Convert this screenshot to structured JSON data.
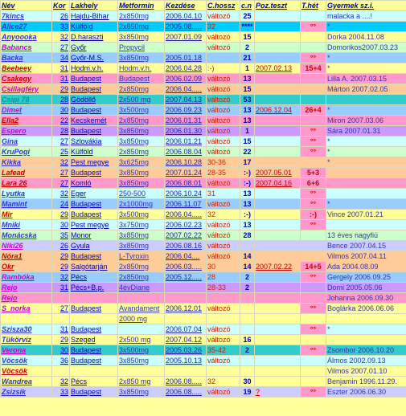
{
  "headers": {
    "nev": "Név",
    "kor": "Kor",
    "lakhely": "Lakhely",
    "metformin": "Metformin",
    "kezdese": "Kezdése",
    "chossz": "C.hossz",
    "cn": "c.n",
    "pozteszt": "Poz.teszt",
    "thet": "T.hét",
    "gyermek": "Gyermek sz.i."
  },
  "rows": [
    {
      "nev": "7kincs",
      "kor": "26",
      "lakhely": "Hajdu-Bihar",
      "metformin": "2x850mg",
      "kezdese": "2006.04.10",
      "chossz": "változó",
      "cn": "25",
      "poz": "",
      "thet": "",
      "gyermek": "malacka a ....!"
    },
    {
      "nev": "Alice27",
      "kor": "33",
      "lakhely": "Külföld",
      "metformin": "2x850mg",
      "kezdese": "2005.08.....",
      "chossz": "32",
      "cn": "****",
      "poz": "",
      "thet": "°°",
      "gyermek": "*"
    },
    {
      "nev": "Anyoooka",
      "kor": "32",
      "lakhely": "D.haraszti",
      "metformin": "3x850mg",
      "kezdese": "2007.01.09",
      "chossz": "változó",
      "cn": "15",
      "poz": "",
      "thet": "",
      "gyermek": "Dorka     2004.11.08"
    },
    {
      "nev": "Babancs",
      "kor": "27",
      "lakhely": "Győr",
      "metformin": "Propycil",
      "kezdese": "",
      "chossz": "változó",
      "cn": "2",
      "poz": "",
      "thet": "",
      "gyermek": "Domonkos2007.03.23"
    },
    {
      "nev": "Backa",
      "kor": "34",
      "lakhely": "Győr-M.S.",
      "metformin": "3x850mg",
      "kezdese": "2005.01.18",
      "chossz": "",
      "cn": "21",
      "poz": "",
      "thet": "°°",
      "gyermek": "*"
    },
    {
      "nev": "Beebeey",
      "kor": "31",
      "lakhely": "Hodm.v.h.",
      "metformin": "Hodm.v.h.",
      "kezdese": "2006.04.28",
      "chossz": ":-)",
      "cn": "1",
      "poz": "2007.02.13",
      "thet": "15+4",
      "gyermek": "*"
    },
    {
      "nev": "Csakegy",
      "kor": "31",
      "lakhely": "Budapest",
      "metformin": "Budapest",
      "kezdese": "2006.02.09",
      "chossz": "változó",
      "cn": "13",
      "poz": "",
      "thet": "",
      "gyermek": "Lilla A.    2007.03.15"
    },
    {
      "nev": "Csillagféry",
      "kor": "29",
      "lakhely": "Budapest",
      "metformin": "2x850mg",
      "kezdese": "2006.04.....",
      "chossz": "változó",
      "cn": "15",
      "poz": "",
      "thet": "",
      "gyermek": "Márton    2007.02.05"
    },
    {
      "nev": "Csipi 78",
      "kor": "28",
      "lakhely": "Gödöllő",
      "metformin": "2x500 mg",
      "kezdese": "2007.04.13",
      "chossz": "változó",
      "cn": "53",
      "poz": "",
      "thet": "",
      "gyermek": ""
    },
    {
      "nev": "Dimet",
      "kor": "30",
      "lakhely": "Budapest",
      "metformin": "3x500mg",
      "kezdese": "2006.09.23",
      "chossz": "változó",
      "cn": "13",
      "poz": "2006.12.04",
      "thet": "26+4",
      "gyermek": "*"
    },
    {
      "nev": "Ella2",
      "kor": "22",
      "lakhely": "Kecskemét",
      "metformin": "2x850mg",
      "kezdese": "2006.01.31",
      "chossz": "változó",
      "cn": "13",
      "poz": "",
      "thet": "",
      "gyermek": "Miron     2007.03.06"
    },
    {
      "nev": "Espero",
      "kor": "28",
      "lakhely": "Budapest",
      "metformin": "3x850mg",
      "kezdese": "2006.01.30",
      "chossz": "változó",
      "cn": "1",
      "poz": "",
      "thet": "°°",
      "gyermek": "Sára      2007.01.31"
    },
    {
      "nev": "Gina",
      "kor": "27",
      "lakhely": "Szlovákia",
      "metformin": "3x850mg",
      "kezdese": "2006.01.21",
      "chossz": "változó",
      "cn": "15",
      "poz": "",
      "thet": "°°",
      "gyermek": "*"
    },
    {
      "nev": "KruPogi",
      "kor": "25",
      "lakhely": "Külföld",
      "metformin": "2x850mg",
      "kezdese": "2006.08.04",
      "chossz": "változó",
      "cn": "22",
      "poz": "",
      "thet": "°°",
      "gyermek": "*"
    },
    {
      "nev": "Kikka",
      "kor": "32",
      "lakhely": "Pest megye",
      "metformin": "3x625mg",
      "kezdese": "2006.10.28",
      "chossz": "30-36",
      "cn": "17",
      "poz": "",
      "thet": "",
      "gyermek": "*"
    },
    {
      "nev": "Lafead",
      "kor": "27",
      "lakhely": "Budapest",
      "metformin": "3x850mg",
      "kezdese": "2007.01.24",
      "chossz": "28-35",
      "cn": ":-)",
      "poz": "2007.05.01",
      "thet": "5+3",
      "gyermek": ""
    },
    {
      "nev": "Lara 26",
      "kor": "27",
      "lakhely": "Komló",
      "metformin": "3x850mg",
      "kezdese": "2006.08.01",
      "chossz": "változó",
      "cn": ":-)",
      "poz": "2007.04.16",
      "thet": "6+6",
      "gyermek": ""
    },
    {
      "nev": "Lyutka",
      "kor": "32",
      "lakhely": "Eger",
      "metformin": "250-500",
      "kezdese": "2006.10.24",
      "chossz": "31",
      "cn": "13",
      "poz": "",
      "thet": "°°",
      "gyermek": ""
    },
    {
      "nev": "Mamint",
      "kor": "24",
      "lakhely": "Budapest",
      "metformin": "2x1000mg",
      "kezdese": "2006.11.07",
      "chossz": "változó",
      "cn": "13",
      "poz": "",
      "thet": "°°",
      "gyermek": "*"
    },
    {
      "nev": "Mir",
      "kor": "29",
      "lakhely": "Budapest",
      "metformin": "3x500mg",
      "kezdese": "2006.04.....",
      "chossz": "32",
      "cn": ":-)",
      "poz": "",
      "thet": ":-)",
      "gyermek": "Vince      2007.01.21"
    },
    {
      "nev": "Mniki",
      "kor": "30",
      "lakhely": "Pest megye",
      "metformin": "3x750mg",
      "kezdese": "2006.02.23",
      "chossz": "változó",
      "cn": "13",
      "poz": "",
      "thet": "°°",
      "gyermek": ""
    },
    {
      "nev": "Monácska",
      "kor": "35",
      "lakhely": "Monor",
      "metformin": "3x850mg",
      "kezdese": "2007.02.22",
      "chossz": "változó",
      "cn": "28",
      "poz": "",
      "thet": "",
      "gyermek": "13 éves nagyfiú"
    },
    {
      "nev": "Niki26",
      "kor": "26",
      "lakhely": "Gyula",
      "metformin": "3x850mg",
      "kezdese": "2006.08.16",
      "chossz": "változó",
      "cn": "",
      "poz": "",
      "thet": "",
      "gyermek": "Bence 2007.04.15"
    },
    {
      "nev": "Nóra1",
      "kor": "29",
      "lakhely": "Budapest",
      "metformin": "L-Tyroxin",
      "kezdese": "2006.04....",
      "chossz": "változó",
      "cn": "14",
      "poz": "",
      "thet": "",
      "gyermek": "Vilmos    2007.04.11"
    },
    {
      "nev": "Okr",
      "kor": "29",
      "lakhely": "Salgótarján",
      "metformin": "2x850mg",
      "kezdese": "2006.03.....",
      "chossz": "30",
      "cn": "14",
      "poz": "2007.02.22",
      "thet": "14+5",
      "gyermek": "Ada          2004.08.09"
    },
    {
      "nev": "Rambóka",
      "kor": "32",
      "lakhely": "Pécs",
      "metformin": "2x850mg",
      "kezdese": "2005.12.....",
      "chossz": "28",
      "cn": "2",
      "poz": "",
      "thet": "°°",
      "gyermek": "Gergely   2006.09.25"
    },
    {
      "nev": "Rejo",
      "kor": "31",
      "lakhely": "Pécs+B.p.",
      "metformin": "4évDiane",
      "kezdese": "",
      "chossz": "28-33",
      "cn": "2",
      "poz": "",
      "thet": "",
      "gyermek": "Domi       2005.05.06"
    },
    {
      "nev": "Rejo",
      "kor": "",
      "lakhely": "",
      "metformin": "",
      "kezdese": "",
      "chossz": "",
      "cn": "",
      "poz": "",
      "thet": "",
      "gyermek": "Johanna  2006.09.30"
    },
    {
      "nev": "S_norka",
      "kor": "27",
      "lakhely": "Budapest",
      "metformin": "Avandament",
      "kezdese": "2006.12.01",
      "chossz": "változó",
      "cn": "",
      "poz": "",
      "thet": "°°",
      "gyermek": "Boglárka 2006.06.06"
    },
    {
      "nev": "",
      "kor": "",
      "lakhely": "",
      "metformin": "2000 mg",
      "kezdese": "",
      "chossz": "",
      "cn": "",
      "poz": "",
      "thet": "",
      "gyermek": ""
    },
    {
      "nev": "Szisza30",
      "kor": "31",
      "lakhely": "Budapest",
      "metformin": "",
      "kezdese": "2006.07.04",
      "chossz": "változó",
      "cn": "",
      "poz": "",
      "thet": "°°",
      "gyermek": "*"
    },
    {
      "nev": "Tükörvíz",
      "kor": "29",
      "lakhely": "Szeged",
      "metformin": "2x500 mg",
      "kezdese": "2007.04.12",
      "chossz": "változó",
      "cn": "16",
      "poz": "",
      "thet": "",
      "gyermek": ""
    },
    {
      "nev": "Verona",
      "kor": "30",
      "lakhely": "Budapest",
      "metformin": "3x500mg",
      "kezdese": "2005.03.26",
      "chossz": "35-42",
      "cn": "2",
      "poz": "",
      "thet": "°°",
      "gyermek": "Zsombor  2006.10.20"
    },
    {
      "nev": "Vöcsök",
      "kor": "36",
      "lakhely": "Budapest",
      "metformin": "3x850mg",
      "kezdese": "2005.10.13",
      "chossz": "változó",
      "cn": "",
      "poz": "",
      "thet": "",
      "gyermek": "Álmos     2002.09.13"
    },
    {
      "nev": "Vöcsök",
      "kor": "",
      "lakhely": "",
      "metformin": "",
      "kezdese": "",
      "chossz": "",
      "cn": "",
      "poz": "",
      "thet": "",
      "gyermek": "Vilmos    2007.01.10"
    },
    {
      "nev": "Wandrea",
      "kor": "32",
      "lakhely": "Pécs",
      "metformin": "2x850 mg",
      "kezdese": "2006.08.....",
      "chossz": "32",
      "cn": "30",
      "poz": "",
      "thet": "",
      "gyermek": "Benjamin 1996.11.29."
    },
    {
      "nev": "Zsizsik",
      "kor": "33",
      "lakhely": "Budapest",
      "metformin": "3x850mg",
      "kezdese": "2006.08.....",
      "chossz": "változó",
      "cn": "19",
      "poz": "?",
      "thet": "°°",
      "gyermek": "Eszter      2006.06.30"
    }
  ],
  "row_colors": [
    "#ccffff",
    "#00ccff",
    "#ffff99",
    "#ccffcc",
    "#99ccff",
    "#ffff99",
    "#ff99cc",
    "#ffcc99",
    "#33cccc",
    "#99ccff",
    "#ff99cc",
    "#cc99ff",
    "#ccffff",
    "#ccffcc",
    "#ffcc99",
    "#ffcc99",
    "#ff99cc",
    "#ccffff",
    "#99ccff",
    "#ffff99",
    "#ccffff",
    "#ccffcc",
    "#ccccff",
    "#ffcc99",
    "#ffcc99",
    "#99ccff",
    "#cc99ff",
    "#ff99cc",
    "#ffff99",
    "#ffff99",
    "#ccffff",
    "#ffff99",
    "#33cccc",
    "#ccffff",
    "#ffff99",
    "#ffff99",
    "#ccccff"
  ],
  "name_colors": [
    "#3333cc",
    "#3333cc",
    "#3333cc",
    "#cc00cc",
    "#3333cc",
    "#cc0000",
    "#cc0000",
    "#cc00cc",
    "#009999",
    "#cc00cc",
    "#cc0000",
    "#cc00cc",
    "#3333cc",
    "#3333cc",
    "#3333cc",
    "#cc0000",
    "#cc0000",
    "#3333cc",
    "#3333cc",
    "#cc0000",
    "#3333cc",
    "#3333cc",
    "#cc00cc",
    "#cc0000",
    "#cc0000",
    "#cc00cc",
    "#cc00cc",
    "#cc00cc",
    "#cc00cc",
    "#000000",
    "#3333cc",
    "#3333cc",
    "#cc00cc",
    "#3333cc",
    "#cc0000",
    "#3333cc",
    "#3333cc"
  ]
}
